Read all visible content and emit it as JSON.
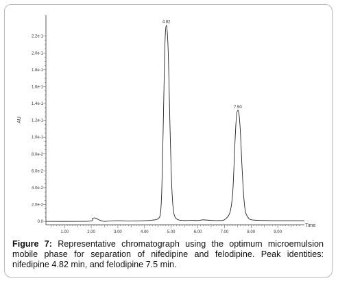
{
  "chart_data": {
    "type": "line",
    "ylabel": "AU",
    "xlabel": "Time",
    "xlim": [
      0.3,
      10.0
    ],
    "ylim": [
      -0.004,
      0.245
    ],
    "x_ticks": [
      "1.00",
      "2.00",
      "3.00",
      "4.00",
      "5.00",
      "6.00",
      "7.00",
      "8.00",
      "9.00"
    ],
    "x_tick_values": [
      1,
      2,
      3,
      4,
      5,
      6,
      7,
      8,
      9
    ],
    "y_ticks": [
      "0.0",
      "2.0e-2",
      "4.0e-2",
      "6.0e-2",
      "8.0e-2",
      "1.0e-1",
      "1.2e-1",
      "1.4e-1",
      "1.6e-1",
      "1.8e-1",
      "2.0e-1",
      "2.2e-1"
    ],
    "y_tick_values": [
      0,
      0.02,
      0.04,
      0.06,
      0.08,
      0.1,
      0.12,
      0.14,
      0.16,
      0.18,
      0.2,
      0.22
    ],
    "peaks": [
      {
        "label": "4.82",
        "time": 4.82,
        "height": 0.233
      },
      {
        "label": "7.50",
        "time": 7.5,
        "height": 0.132
      }
    ],
    "series": [
      {
        "x": [
          0.3,
          1.5,
          2.0,
          2.05,
          2.15,
          2.25,
          2.35,
          2.5,
          2.7,
          3.0,
          3.5,
          4.0,
          4.3,
          4.5,
          4.6,
          4.65,
          4.7,
          4.75,
          4.78,
          4.82,
          4.86,
          4.9,
          4.95,
          5.0,
          5.05,
          5.1,
          5.15,
          5.2,
          5.3,
          5.5,
          5.8,
          6.0,
          6.2,
          6.5,
          6.8,
          7.0,
          7.2,
          7.3,
          7.35,
          7.4,
          7.45,
          7.5,
          7.55,
          7.6,
          7.65,
          7.7,
          7.75,
          7.8,
          7.9,
          8.0,
          8.3,
          8.6,
          9.0,
          9.5,
          10.0
        ],
        "y": [
          0,
          0,
          0.0005,
          0.0035,
          0.004,
          0.0025,
          0.001,
          0,
          0.0005,
          0.0008,
          0.0005,
          0.0008,
          0.0015,
          0.003,
          0.01,
          0.04,
          0.11,
          0.19,
          0.222,
          0.233,
          0.222,
          0.19,
          0.12,
          0.06,
          0.025,
          0.01,
          0.005,
          0.003,
          0.0015,
          0.001,
          0.0012,
          0.001,
          0.0018,
          0.0012,
          0.001,
          0.002,
          0.01,
          0.03,
          0.06,
          0.098,
          0.125,
          0.132,
          0.126,
          0.105,
          0.07,
          0.04,
          0.02,
          0.01,
          0.004,
          0.002,
          0.0012,
          0.001,
          0.0008,
          0.0008,
          0.0008
        ]
      }
    ]
  },
  "caption": {
    "label": "Figure 7:",
    "text": " Representative chromatograph using the optimum microemulsion mobile phase for separation of nifedipine and felodipine. Peak identities: nifedipine 4.82 min, and felodipine 7.5 min."
  }
}
